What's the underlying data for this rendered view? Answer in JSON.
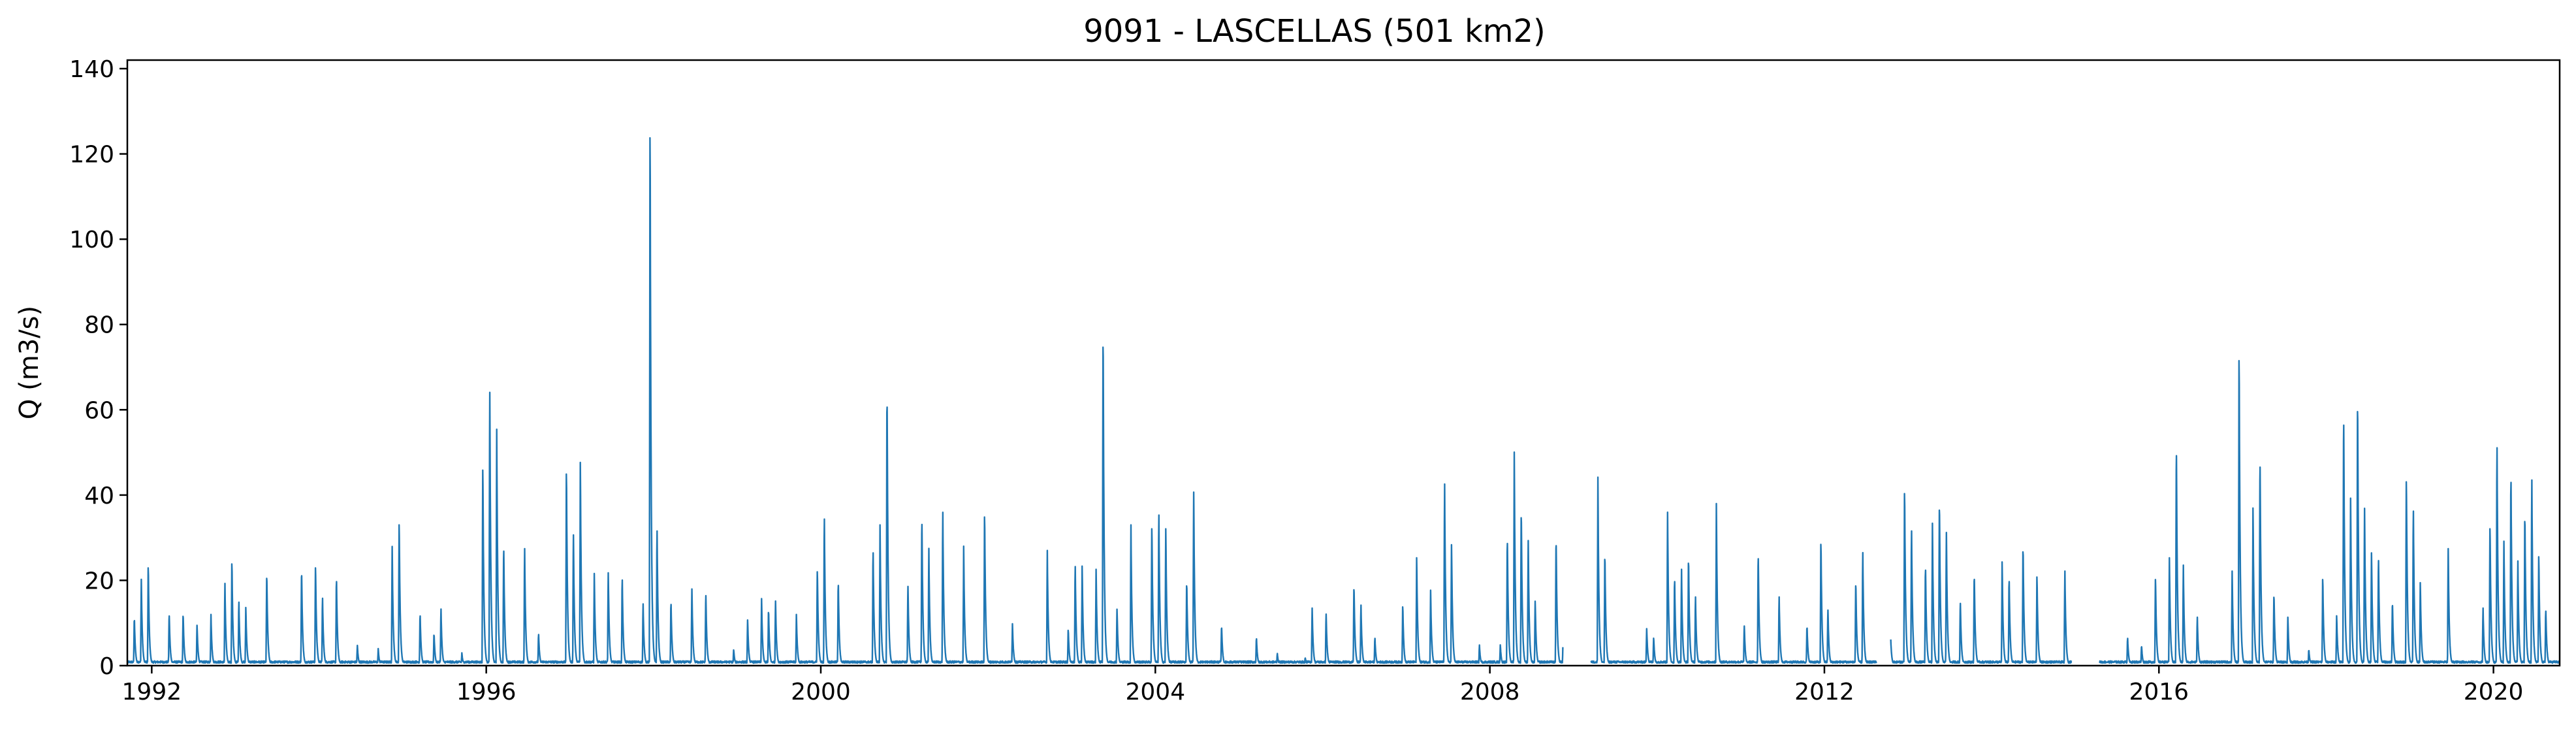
{
  "chart_data": {
    "type": "line",
    "title": "9091 - LASCELLAS (501 km2)",
    "xlabel": "",
    "ylabel": "Q (m3/s)",
    "xlim": [
      "1991-09",
      "2020-10"
    ],
    "ylim": [
      0,
      142
    ],
    "x_ticks": [
      "1992",
      "1996",
      "2000",
      "2004",
      "2008",
      "2012",
      "2016",
      "2020"
    ],
    "y_ticks": [
      "0",
      "20",
      "40",
      "60",
      "80",
      "100",
      "120",
      "140"
    ],
    "grid": false,
    "legend": "none",
    "series": [
      {
        "color": "#1f77b4",
        "baseflow": 1.0,
        "gaps": [
          [
            "2008-11",
            "2009-03"
          ],
          [
            "2012-08",
            "2012-10"
          ],
          [
            "2014-12",
            "2015-04"
          ]
        ],
        "peaks": [
          [
            "1991-10",
            12
          ],
          [
            "1991-11",
            21
          ],
          [
            "1991-12",
            25
          ],
          [
            "1992-03",
            13
          ],
          [
            "1992-05",
            13
          ],
          [
            "1992-07",
            10
          ],
          [
            "1992-09",
            12
          ],
          [
            "1992-11",
            20
          ],
          [
            "1992-12",
            26
          ],
          [
            "1993-01",
            16
          ],
          [
            "1993-02",
            14
          ],
          [
            "1993-05",
            23
          ],
          [
            "1993-10",
            24
          ],
          [
            "1993-12",
            25
          ],
          [
            "1994-01",
            17
          ],
          [
            "1994-03",
            22
          ],
          [
            "1994-06",
            5
          ],
          [
            "1994-09",
            4
          ],
          [
            "1994-11",
            29
          ],
          [
            "1994-12",
            36
          ],
          [
            "1995-03",
            13
          ],
          [
            "1995-05",
            8
          ],
          [
            "1995-06",
            14
          ],
          [
            "1995-09",
            3
          ],
          [
            "1995-12",
            50
          ],
          [
            "1996-01",
            69
          ],
          [
            "1996-02",
            57
          ],
          [
            "1996-03",
            30
          ],
          [
            "1996-06",
            29
          ],
          [
            "1996-08",
            8
          ],
          [
            "1996-12",
            49
          ],
          [
            "1997-01",
            33
          ],
          [
            "1997-02",
            49
          ],
          [
            "1997-04",
            22
          ],
          [
            "1997-06",
            23
          ],
          [
            "1997-08",
            22
          ],
          [
            "1997-11",
            15
          ],
          [
            "1997-12",
            135
          ],
          [
            "1998-01",
            34
          ],
          [
            "1998-03",
            16
          ],
          [
            "1998-06",
            19
          ],
          [
            "1998-08",
            18
          ],
          [
            "1998-12",
            4
          ],
          [
            "1999-02",
            11
          ],
          [
            "1999-04",
            16
          ],
          [
            "1999-05",
            14
          ],
          [
            "1999-06",
            16
          ],
          [
            "1999-09",
            12
          ],
          [
            "1999-12",
            24
          ],
          [
            "2000-01",
            37
          ],
          [
            "2000-03",
            21
          ],
          [
            "2000-08",
            29
          ],
          [
            "2000-09",
            33
          ],
          [
            "2000-10",
            69
          ],
          [
            "2001-01",
            20
          ],
          [
            "2001-03",
            37
          ],
          [
            "2001-04",
            28
          ],
          [
            "2001-06",
            38
          ],
          [
            "2001-09",
            28
          ],
          [
            "2001-12",
            38
          ],
          [
            "2002-04",
            10
          ],
          [
            "2002-09",
            27
          ],
          [
            "2002-12",
            9
          ],
          [
            "2003-01",
            25
          ],
          [
            "2003-02",
            24
          ],
          [
            "2003-04",
            23
          ],
          [
            "2003-05",
            84
          ],
          [
            "2003-07",
            14
          ],
          [
            "2003-09",
            33
          ],
          [
            "2003-12",
            35
          ],
          [
            "2004-01",
            38
          ],
          [
            "2004-02",
            33
          ],
          [
            "2004-05",
            21
          ],
          [
            "2004-06",
            43
          ],
          [
            "2004-10",
            10
          ],
          [
            "2005-03",
            7
          ],
          [
            "2005-06",
            3
          ],
          [
            "2005-10",
            2
          ],
          [
            "2005-11",
            14
          ],
          [
            "2006-01",
            13
          ],
          [
            "2006-05",
            20
          ],
          [
            "2006-06",
            15
          ],
          [
            "2006-08",
            7
          ],
          [
            "2006-12",
            15
          ],
          [
            "2007-02",
            26
          ],
          [
            "2007-04",
            18
          ],
          [
            "2007-06",
            45
          ],
          [
            "2007-07",
            30
          ],
          [
            "2007-11",
            5
          ],
          [
            "2008-02",
            5
          ],
          [
            "2008-03",
            32
          ],
          [
            "2008-04",
            51
          ],
          [
            "2008-05",
            39
          ],
          [
            "2008-06",
            31
          ],
          [
            "2008-07",
            16
          ],
          [
            "2008-10",
            32
          ],
          [
            "2008-11",
            6
          ],
          [
            "2009-04",
            45
          ],
          [
            "2009-05",
            28
          ],
          [
            "2009-11",
            9
          ],
          [
            "2009-12",
            7
          ],
          [
            "2010-02",
            37
          ],
          [
            "2010-03",
            22
          ],
          [
            "2010-04",
            23
          ],
          [
            "2010-05",
            27
          ],
          [
            "2010-06",
            17
          ],
          [
            "2010-09",
            38
          ],
          [
            "2011-01",
            10
          ],
          [
            "2011-03",
            28
          ],
          [
            "2011-06",
            17
          ],
          [
            "2011-10",
            10
          ],
          [
            "2011-12",
            31
          ],
          [
            "2012-01",
            14
          ],
          [
            "2012-05",
            21
          ],
          [
            "2012-06",
            28
          ],
          [
            "2012-10",
            7
          ],
          [
            "2012-12",
            44
          ],
          [
            "2013-01",
            34
          ],
          [
            "2013-03",
            25
          ],
          [
            "2013-04",
            34
          ],
          [
            "2013-05",
            41
          ],
          [
            "2013-06",
            33
          ],
          [
            "2013-08",
            16
          ],
          [
            "2013-10",
            23
          ],
          [
            "2014-02",
            25
          ],
          [
            "2014-03",
            22
          ],
          [
            "2014-05",
            30
          ],
          [
            "2014-07",
            22
          ],
          [
            "2014-11",
            23
          ],
          [
            "2015-08",
            7
          ],
          [
            "2015-10",
            5
          ],
          [
            "2015-12",
            22
          ],
          [
            "2016-02",
            26
          ],
          [
            "2016-03",
            55
          ],
          [
            "2016-04",
            24
          ],
          [
            "2016-06",
            12
          ],
          [
            "2016-11",
            23
          ],
          [
            "2016-12",
            78
          ],
          [
            "2017-02",
            38
          ],
          [
            "2017-03",
            52
          ],
          [
            "2017-05",
            18
          ],
          [
            "2017-07",
            12
          ],
          [
            "2017-10",
            4
          ],
          [
            "2017-12",
            22
          ],
          [
            "2018-02",
            12
          ],
          [
            "2018-03",
            63
          ],
          [
            "2018-04",
            40
          ],
          [
            "2018-05",
            67
          ],
          [
            "2018-06",
            39
          ],
          [
            "2018-07",
            28
          ],
          [
            "2018-08",
            27
          ],
          [
            "2018-10",
            16
          ],
          [
            "2018-12",
            47
          ],
          [
            "2019-01",
            39
          ],
          [
            "2019-02",
            20
          ],
          [
            "2019-06",
            29
          ],
          [
            "2019-11",
            14
          ],
          [
            "2019-12",
            35
          ],
          [
            "2020-01",
            55
          ],
          [
            "2020-02",
            30
          ],
          [
            "2020-03",
            48
          ],
          [
            "2020-04",
            25
          ],
          [
            "2020-05",
            38
          ],
          [
            "2020-06",
            46
          ],
          [
            "2020-07",
            27
          ],
          [
            "2020-08",
            14
          ]
        ]
      }
    ]
  }
}
